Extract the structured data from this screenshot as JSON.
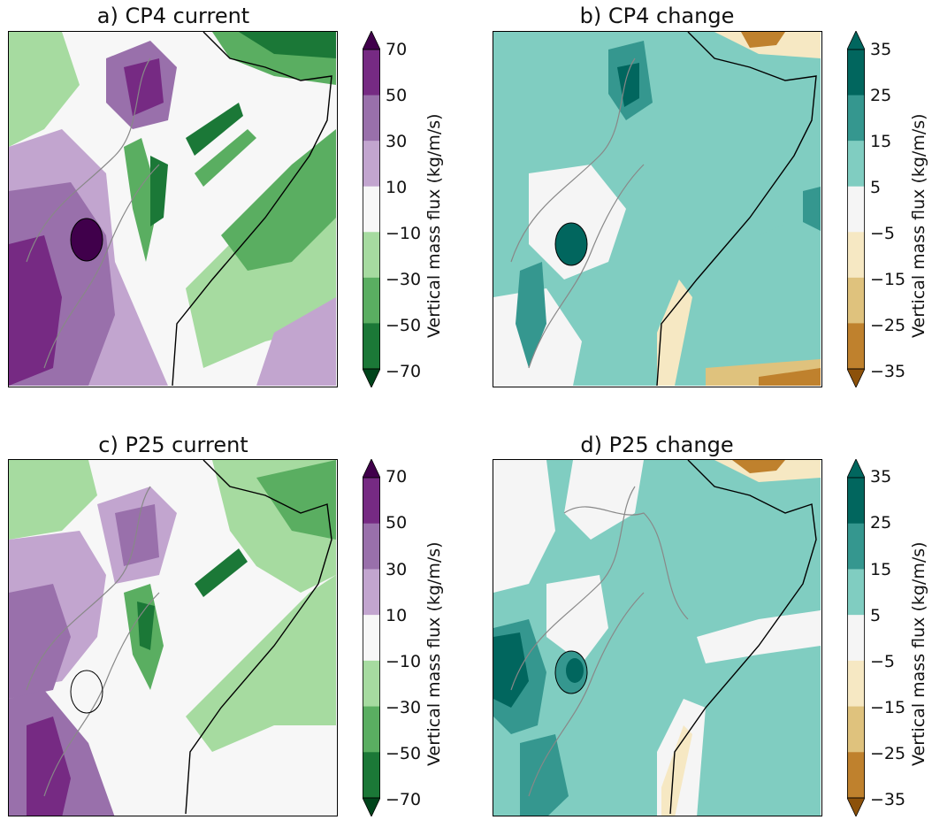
{
  "figure": {
    "panels": [
      {
        "id": "a",
        "title": "a) CP4 current",
        "field": "current",
        "colorbar": {
          "label": "Vertical mass flux (kg/m/s)",
          "ticks": [
            "70",
            "50",
            "30",
            "10",
            "−10",
            "−30",
            "−50",
            "−70"
          ],
          "colors": [
            "#40004b",
            "#762a83",
            "#9970ab",
            "#c2a5cf",
            "#f7f7f7",
            "#a6dba0",
            "#5aae61",
            "#1b7837",
            "#00441b"
          ]
        }
      },
      {
        "id": "b",
        "title": "b) CP4 change",
        "field": "change",
        "colorbar": {
          "label": "Vertical mass flux (kg/m/s)",
          "ticks": [
            "35",
            "25",
            "15",
            "5",
            "−5",
            "−15",
            "−25",
            "−35"
          ],
          "colors": [
            "#01665e",
            "#01665e",
            "#35978f",
            "#80cdc1",
            "#f5f5f5",
            "#f6e8c3",
            "#dfc27d",
            "#bf812d",
            "#8c510a"
          ]
        }
      },
      {
        "id": "c",
        "title": "c) P25 current",
        "field": "current",
        "colorbar": {
          "label": "Vertical mass flux (kg/m/s)",
          "ticks": [
            "70",
            "50",
            "30",
            "10",
            "−10",
            "−30",
            "−50",
            "−70"
          ],
          "colors": [
            "#40004b",
            "#762a83",
            "#9970ab",
            "#c2a5cf",
            "#f7f7f7",
            "#a6dba0",
            "#5aae61",
            "#1b7837",
            "#00441b"
          ]
        }
      },
      {
        "id": "d",
        "title": "d) P25 change",
        "field": "change",
        "colorbar": {
          "label": "Vertical mass flux (kg/m/s)",
          "ticks": [
            "35",
            "25",
            "15",
            "5",
            "−5",
            "−15",
            "−25",
            "−35"
          ],
          "colors": [
            "#01665e",
            "#01665e",
            "#35978f",
            "#80cdc1",
            "#f5f5f5",
            "#f6e8c3",
            "#dfc27d",
            "#bf812d",
            "#8c510a"
          ]
        }
      }
    ]
  }
}
